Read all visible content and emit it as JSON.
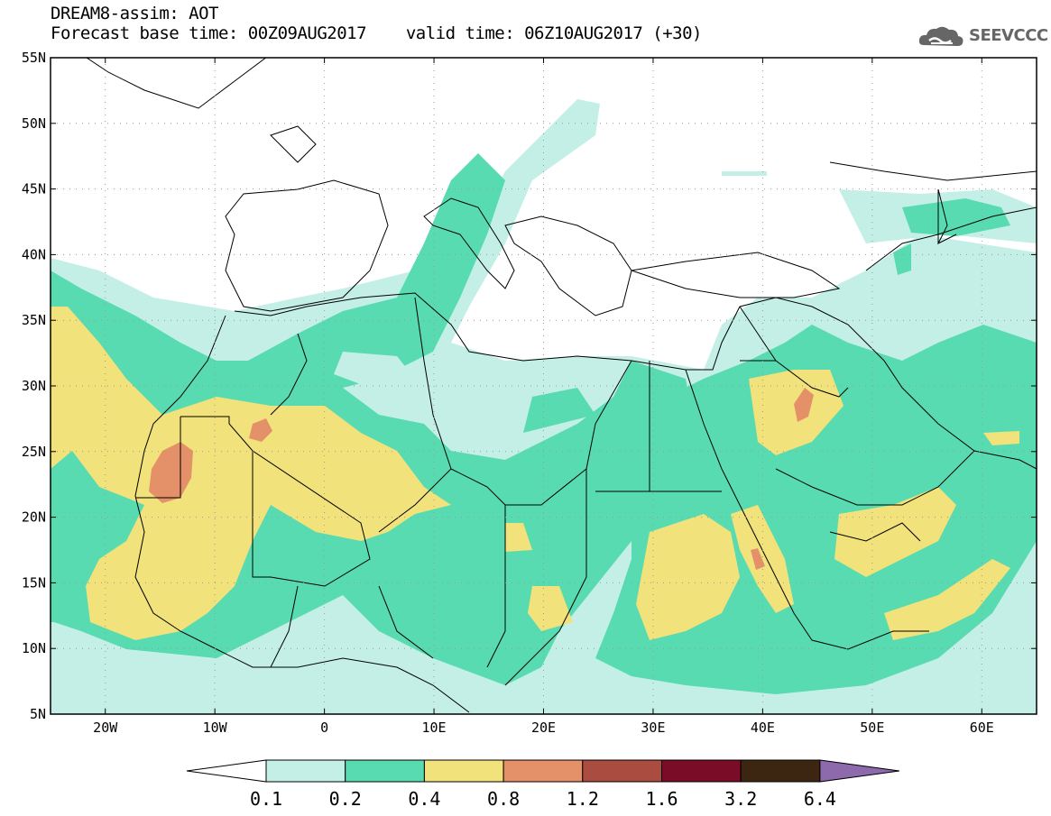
{
  "header": {
    "title": "DREAM8-assim: AOT",
    "base_time_label": "Forecast base time: 00Z09AUG2017",
    "valid_time_label": "valid time: 06Z10AUG2017 (+30)"
  },
  "logo": {
    "text": "SEEVCCC",
    "icon": "cloud-icon"
  },
  "map": {
    "lon_range": [
      -25,
      65
    ],
    "lat_range": [
      5,
      55
    ],
    "lon_ticks": [
      {
        "value": -20,
        "label": "20W"
      },
      {
        "value": -10,
        "label": "10W"
      },
      {
        "value": 0,
        "label": "0"
      },
      {
        "value": 10,
        "label": "10E"
      },
      {
        "value": 20,
        "label": "20E"
      },
      {
        "value": 30,
        "label": "30E"
      },
      {
        "value": 40,
        "label": "40E"
      },
      {
        "value": 50,
        "label": "50E"
      },
      {
        "value": 60,
        "label": "60E"
      }
    ],
    "lat_ticks": [
      {
        "value": 55,
        "label": "55N"
      },
      {
        "value": 50,
        "label": "50N"
      },
      {
        "value": 45,
        "label": "45N"
      },
      {
        "value": 40,
        "label": "40N"
      },
      {
        "value": 35,
        "label": "35N"
      },
      {
        "value": 30,
        "label": "30N"
      },
      {
        "value": 25,
        "label": "25N"
      },
      {
        "value": 20,
        "label": "20N"
      },
      {
        "value": 15,
        "label": "15N"
      },
      {
        "value": 10,
        "label": "10N"
      },
      {
        "value": 5,
        "label": "5N"
      }
    ]
  },
  "colorbar": {
    "colors": [
      "#c4efe7",
      "#58dbb1",
      "#f1e27b",
      "#e4916a",
      "#aa4c3f",
      "#7a0c28",
      "#3c2611",
      "#8c6aab"
    ],
    "labels": [
      "0.1",
      "0.2",
      "0.4",
      "0.8",
      "1.2",
      "1.6",
      "3.2",
      "6.4"
    ]
  }
}
